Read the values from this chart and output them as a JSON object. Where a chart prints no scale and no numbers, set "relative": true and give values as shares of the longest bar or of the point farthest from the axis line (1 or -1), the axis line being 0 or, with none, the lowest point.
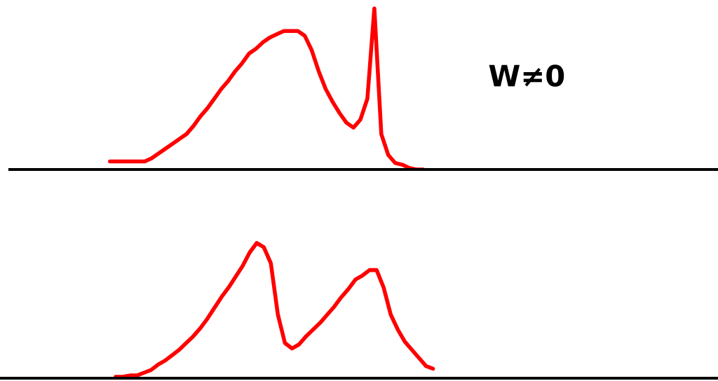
{
  "chart_data": [
    {
      "type": "line",
      "relative": true,
      "annotations": [
        "W≠0"
      ],
      "categories": [
        null,
        null,
        null,
        null,
        null,
        null,
        null,
        null,
        null,
        null,
        null,
        null,
        null,
        null,
        null,
        null,
        null,
        null,
        null,
        null,
        null,
        null,
        null,
        null,
        null,
        null,
        null,
        null,
        null,
        null,
        null,
        null,
        null,
        null,
        null,
        null,
        null,
        null,
        null,
        null,
        null,
        null,
        null,
        null,
        null,
        null,
        null,
        null,
        null,
        null,
        null,
        null,
        null,
        null,
        null,
        null,
        null,
        null,
        null,
        null,
        null,
        null,
        null,
        null,
        null,
        null,
        null,
        null,
        null,
        null,
        null,
        null,
        null,
        null,
        null,
        null,
        null,
        null,
        null,
        null,
        null,
        null,
        null,
        null,
        null,
        null,
        null,
        null,
        null,
        null,
        null,
        null,
        null,
        null,
        null,
        null,
        null,
        null,
        null,
        null,
        null,
        null
      ],
      "series": [
        {
          "color": "#ff0000",
          "values": [
            null,
            null,
            null,
            null,
            null,
            null,
            null,
            null,
            null,
            null,
            null,
            null,
            null,
            null,
            0.05,
            0.05,
            0.05,
            0.05,
            0.05,
            0.05,
            0.07,
            0.1,
            0.13,
            0.16,
            0.19,
            0.22,
            0.27,
            0.33,
            0.38,
            0.44,
            0.5,
            0.55,
            0.61,
            0.66,
            0.72,
            0.75,
            0.79,
            0.82,
            0.84,
            0.86,
            0.86,
            0.86,
            0.83,
            0.74,
            0.61,
            0.5,
            0.42,
            0.35,
            0.29,
            0.26,
            0.31,
            0.44,
            1,
            0.22,
            0.09,
            0.04,
            0.03,
            0.01,
            0,
            0,
            null,
            null,
            null,
            null,
            null,
            null,
            null,
            null,
            null,
            null,
            null,
            null,
            null,
            null,
            null,
            null,
            null,
            null,
            null,
            null,
            null,
            null,
            null,
            null,
            null,
            null,
            null,
            null,
            null,
            null,
            null,
            null,
            null,
            null,
            null,
            null,
            null,
            null,
            null,
            null,
            null,
            null
          ]
        }
      ]
    },
    {
      "type": "line",
      "relative": true,
      "categories": [
        null,
        null,
        null,
        null,
        null,
        null,
        null,
        null,
        null,
        null,
        null,
        null,
        null,
        null,
        null,
        null,
        null,
        null,
        null,
        null,
        null,
        null,
        null,
        null,
        null,
        null,
        null,
        null,
        null,
        null,
        null,
        null,
        null,
        null,
        null,
        null,
        null,
        null,
        null,
        null,
        null,
        null,
        null,
        null,
        null,
        null,
        null,
        null,
        null,
        null,
        null,
        null,
        null,
        null,
        null,
        null,
        null,
        null,
        null,
        null,
        null,
        null,
        null,
        null,
        null,
        null,
        null,
        null,
        null,
        null,
        null,
        null,
        null,
        null,
        null,
        null,
        null,
        null,
        null,
        null,
        null,
        null,
        null,
        null,
        null,
        null,
        null,
        null,
        null,
        null,
        null,
        null,
        null,
        null,
        null,
        null,
        null,
        null,
        null,
        null,
        null,
        null
      ],
      "series": [
        {
          "color": "#ff0000",
          "values": [
            null,
            null,
            null,
            null,
            null,
            null,
            null,
            null,
            null,
            null,
            null,
            null,
            null,
            null,
            null,
            null,
            0.01,
            0.01,
            0.02,
            0.02,
            0.04,
            0.06,
            0.1,
            0.13,
            0.17,
            0.21,
            0.26,
            0.31,
            0.37,
            0.44,
            0.52,
            0.6,
            0.67,
            0.75,
            0.83,
            0.93,
            1,
            0.97,
            0.85,
            0.47,
            0.26,
            0.22,
            0.25,
            0.31,
            0.36,
            0.41,
            0.47,
            0.53,
            0.6,
            0.66,
            0.73,
            0.76,
            0.8,
            0.8,
            0.67,
            0.47,
            0.36,
            0.27,
            0.21,
            0.15,
            0.09,
            0.07,
            null,
            null,
            null,
            null,
            null,
            null,
            null,
            null,
            null,
            null,
            null,
            null,
            null,
            null,
            null,
            null,
            null,
            null,
            null,
            null,
            null,
            null,
            null,
            null,
            null,
            null,
            null,
            null,
            null,
            null,
            null,
            null,
            null,
            null,
            null,
            null,
            null,
            null,
            null,
            null
          ]
        }
      ]
    }
  ]
}
